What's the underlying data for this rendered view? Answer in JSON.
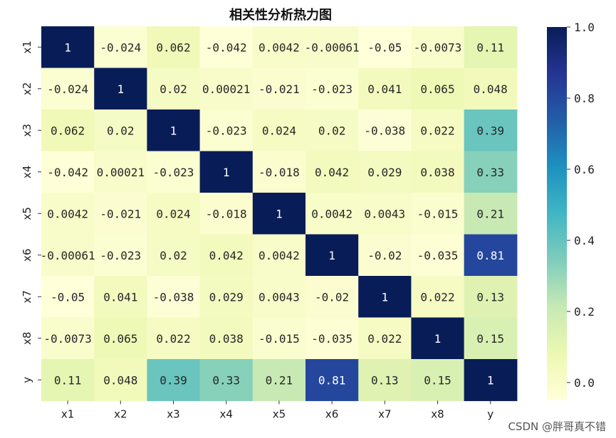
{
  "chart_data": {
    "type": "heatmap",
    "title": "相关性分析热力图",
    "xlabel": "",
    "ylabel": "",
    "x_labels": [
      "x1",
      "x2",
      "x3",
      "x4",
      "x5",
      "x6",
      "x7",
      "x8",
      "y"
    ],
    "y_labels": [
      "x1",
      "x2",
      "x3",
      "x4",
      "x5",
      "x6",
      "x7",
      "x8",
      "y"
    ],
    "values": [
      [
        1,
        -0.024,
        0.062,
        -0.042,
        0.0042,
        -0.00061,
        -0.05,
        -0.0073,
        0.11
      ],
      [
        -0.024,
        1,
        0.02,
        0.00021,
        -0.021,
        -0.023,
        0.041,
        0.065,
        0.048
      ],
      [
        0.062,
        0.02,
        1,
        -0.023,
        0.024,
        0.02,
        -0.038,
        0.022,
        0.39
      ],
      [
        -0.042,
        0.00021,
        -0.023,
        1,
        -0.018,
        0.042,
        0.029,
        0.038,
        0.33
      ],
      [
        0.0042,
        -0.021,
        0.024,
        -0.018,
        1,
        0.0042,
        0.0043,
        -0.015,
        0.21
      ],
      [
        -0.00061,
        -0.023,
        0.02,
        0.042,
        0.0042,
        1,
        -0.02,
        -0.035,
        0.81
      ],
      [
        -0.05,
        0.041,
        -0.038,
        0.029,
        0.0043,
        -0.02,
        1,
        0.022,
        0.13
      ],
      [
        -0.0073,
        0.065,
        0.022,
        0.038,
        -0.015,
        -0.035,
        0.022,
        1,
        0.15
      ],
      [
        0.11,
        0.048,
        0.39,
        0.33,
        0.21,
        0.81,
        0.13,
        0.15,
        1
      ]
    ],
    "labels": [
      [
        "1",
        "-0.024",
        "0.062",
        "-0.042",
        "0.0042",
        "-0.00061",
        "-0.05",
        "-0.0073",
        "0.11"
      ],
      [
        "-0.024",
        "1",
        "0.02",
        "0.00021",
        "-0.021",
        "-0.023",
        "0.041",
        "0.065",
        "0.048"
      ],
      [
        "0.062",
        "0.02",
        "1",
        "-0.023",
        "0.024",
        "0.02",
        "-0.038",
        "0.022",
        "0.39"
      ],
      [
        "-0.042",
        "0.00021",
        "-0.023",
        "1",
        "-0.018",
        "0.042",
        "0.029",
        "0.038",
        "0.33"
      ],
      [
        "0.0042",
        "-0.021",
        "0.024",
        "-0.018",
        "1",
        "0.0042",
        "0.0043",
        "-0.015",
        "0.21"
      ],
      [
        "-0.00061",
        "-0.023",
        "0.02",
        "0.042",
        "0.0042",
        "1",
        "-0.02",
        "-0.035",
        "0.81"
      ],
      [
        "-0.05",
        "0.041",
        "-0.038",
        "0.029",
        "0.0043",
        "-0.02",
        "1",
        "0.022",
        "0.13"
      ],
      [
        "-0.0073",
        "0.065",
        "0.022",
        "0.038",
        "-0.015",
        "-0.035",
        "0.022",
        "1",
        "0.15"
      ],
      [
        "0.11",
        "0.048",
        "0.39",
        "0.33",
        "0.21",
        "0.81",
        "0.13",
        "0.15",
        "1"
      ]
    ],
    "colorbar": {
      "colormap": "YlGnBu",
      "vmin": -0.05,
      "vmax": 1.0,
      "ticks": [
        0.0,
        0.2,
        0.4,
        0.6,
        0.8,
        1.0
      ],
      "tick_labels": [
        "0.0",
        "0.2",
        "0.4",
        "0.6",
        "0.8",
        "1.0"
      ],
      "colors": [
        "#ffffd9",
        "#edf8b1",
        "#c7e9b4",
        "#7fcdbb",
        "#41b6c4",
        "#1d91c0",
        "#225ea8",
        "#253494",
        "#081d58"
      ]
    },
    "text_light_threshold": 0.55,
    "grid": false,
    "legend": "right colorbar"
  },
  "watermark": "CSDN @胖哥真不错"
}
